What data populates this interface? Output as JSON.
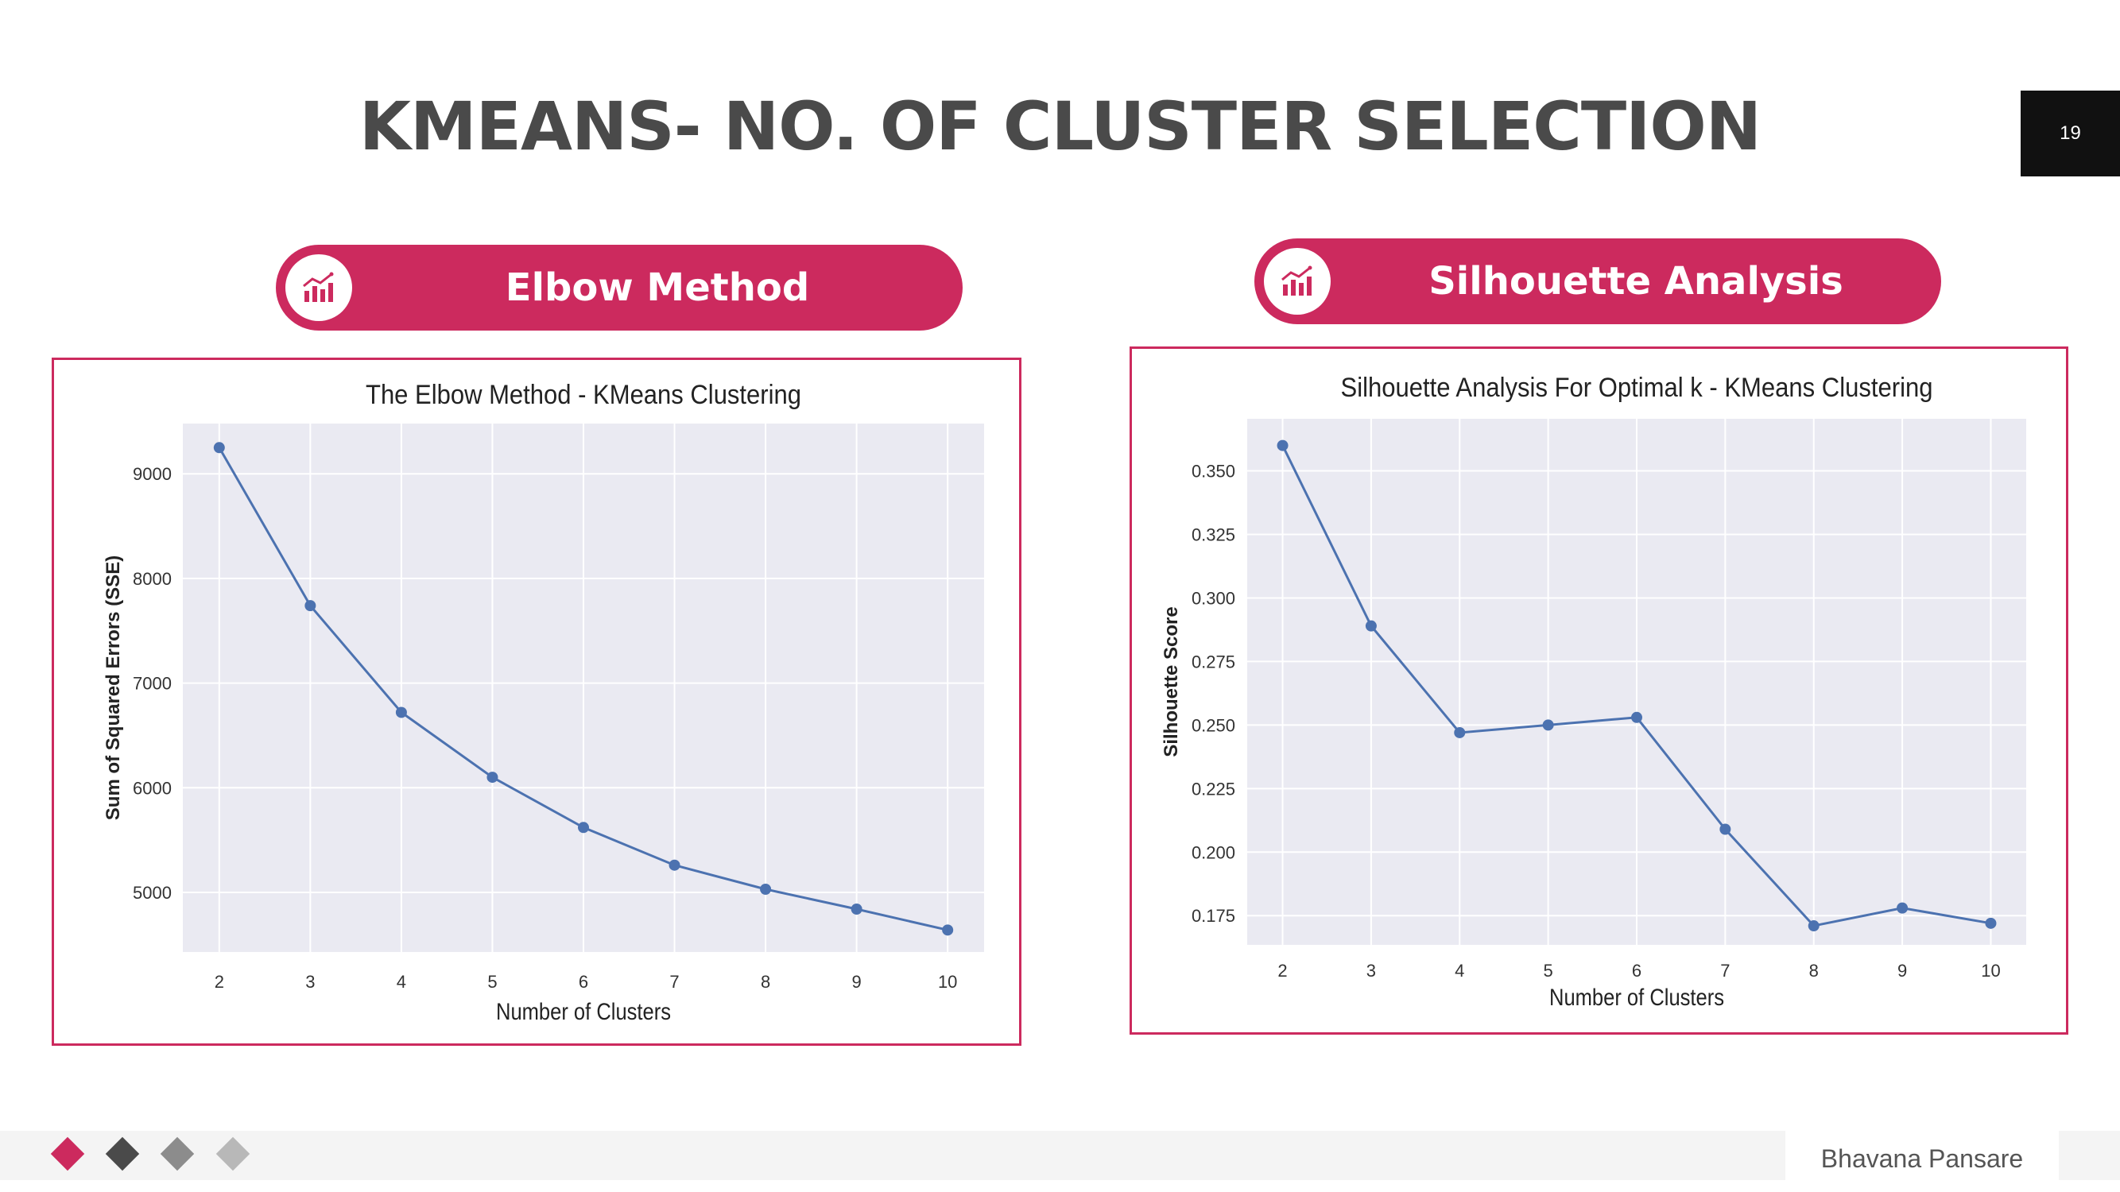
{
  "slide": {
    "title": "KMEANS- NO. OF CLUSTER SELECTION",
    "page_number": "19",
    "author": "Bhavana Pansare",
    "accent_color": "#cc2a5e",
    "footer_diamond_colors": [
      "#cc2a5e",
      "#4a4a4a",
      "#8c8c8c",
      "#b8b8b8"
    ]
  },
  "sections": {
    "elbow_label": "Elbow Method",
    "silhouette_label": "Silhouette Analysis",
    "icon": "chart-growth-icon"
  },
  "chart_data": [
    {
      "type": "line",
      "title": "The Elbow Method - KMeans Clustering",
      "xlabel": "Number of Clusters",
      "ylabel": "Sum of Squared Errors (SSE)",
      "x": [
        2,
        3,
        4,
        5,
        6,
        7,
        8,
        9,
        10
      ],
      "values": [
        9250,
        7740,
        6720,
        6100,
        5620,
        5260,
        5030,
        4840,
        4640
      ],
      "yticks": [
        5000,
        6000,
        7000,
        8000,
        9000
      ],
      "yticklabels": [
        "5000",
        "6000",
        "7000",
        "8000",
        "9000"
      ],
      "ylim": [
        4430,
        9480
      ],
      "xlim": [
        1.6,
        10.4
      ],
      "line_color": "#4c72b0",
      "grid": true,
      "plot_background": "#eaeaf2"
    },
    {
      "type": "line",
      "title": "Silhouette Analysis For Optimal k - KMeans Clustering",
      "xlabel": "Number of Clusters",
      "ylabel": "Silhouette Score",
      "x": [
        2,
        3,
        4,
        5,
        6,
        7,
        8,
        9,
        10
      ],
      "values": [
        0.36,
        0.289,
        0.247,
        0.25,
        0.253,
        0.209,
        0.171,
        0.178,
        0.172
      ],
      "yticks": [
        0.175,
        0.2,
        0.225,
        0.25,
        0.275,
        0.3,
        0.325,
        0.35
      ],
      "yticklabels": [
        "0.175",
        "0.200",
        "0.225",
        "0.250",
        "0.275",
        "0.300",
        "0.325",
        "0.350"
      ],
      "ylim": [
        0.1635,
        0.3705
      ],
      "xlim": [
        1.6,
        10.4
      ],
      "line_color": "#4c72b0",
      "grid": true,
      "plot_background": "#eaeaf2"
    }
  ]
}
